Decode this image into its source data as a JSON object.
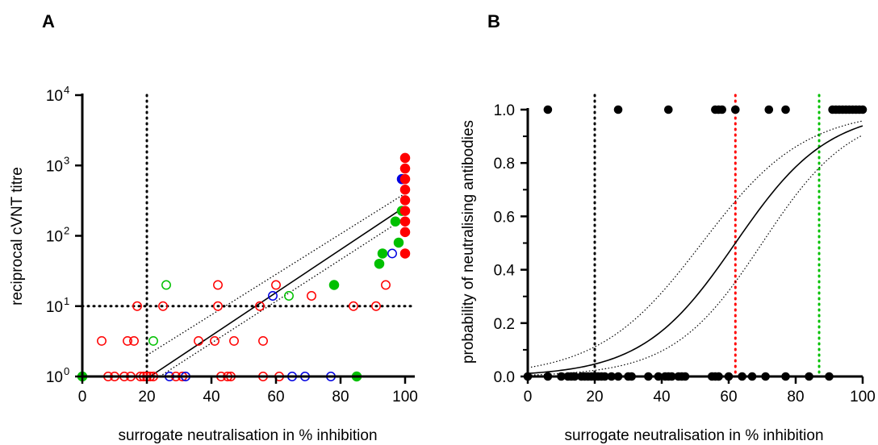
{
  "chart_data": [
    {
      "panel": "A",
      "type": "scatter",
      "xlabel": "surrogate neutralisation in % inhibition",
      "ylabel": "reciprocal cVNT titre",
      "xlim": [
        0,
        100
      ],
      "ylim": [
        1,
        10000
      ],
      "yscale": "log",
      "xticks": [
        "0",
        "20",
        "40",
        "60",
        "80",
        "100"
      ],
      "yticks": [
        {
          "base": "10",
          "exp": "0"
        },
        {
          "base": "10",
          "exp": "1"
        },
        {
          "base": "10",
          "exp": "2"
        },
        {
          "base": "10",
          "exp": "3"
        },
        {
          "base": "10",
          "exp": "4"
        }
      ],
      "reference_lines": {
        "x": 20,
        "y": 10
      },
      "colors": {
        "red": "#ff0000",
        "green": "#00c000",
        "blue": "#0000e0",
        "black": "#000000"
      },
      "fit": {
        "x": [
          21,
          100
        ],
        "y": [
          1,
          260
        ]
      },
      "ci_upper": {
        "x": [
          20,
          100
        ],
        "y": [
          2,
          400
        ]
      },
      "ci_lower": {
        "x": [
          24,
          100
        ],
        "y": [
          1,
          180
        ]
      },
      "points": [
        {
          "x": 0,
          "y": 1,
          "color": "green",
          "filled": true
        },
        {
          "x": 6,
          "y": 3.2,
          "color": "red",
          "filled": false
        },
        {
          "x": 8,
          "y": 1,
          "color": "red",
          "filled": false
        },
        {
          "x": 10,
          "y": 1,
          "color": "red",
          "filled": false
        },
        {
          "x": 13,
          "y": 1,
          "color": "red",
          "filled": false
        },
        {
          "x": 14,
          "y": 3.2,
          "color": "red",
          "filled": false
        },
        {
          "x": 16,
          "y": 3.2,
          "color": "red",
          "filled": false
        },
        {
          "x": 17,
          "y": 10,
          "color": "red",
          "filled": false
        },
        {
          "x": 15,
          "y": 1,
          "color": "red",
          "filled": false
        },
        {
          "x": 18,
          "y": 1,
          "color": "red",
          "filled": false
        },
        {
          "x": 19,
          "y": 1,
          "color": "red",
          "filled": false
        },
        {
          "x": 20,
          "y": 1,
          "color": "red",
          "filled": false
        },
        {
          "x": 21,
          "y": 1,
          "color": "red",
          "filled": false
        },
        {
          "x": 22,
          "y": 1,
          "color": "red",
          "filled": false
        },
        {
          "x": 22,
          "y": 3.2,
          "color": "green",
          "filled": false
        },
        {
          "x": 26,
          "y": 20,
          "color": "green",
          "filled": false
        },
        {
          "x": 25,
          "y": 10,
          "color": "red",
          "filled": false
        },
        {
          "x": 27,
          "y": 1,
          "color": "blue",
          "filled": false
        },
        {
          "x": 29,
          "y": 1,
          "color": "red",
          "filled": false
        },
        {
          "x": 31,
          "y": 1,
          "color": "red",
          "filled": false
        },
        {
          "x": 32,
          "y": 1,
          "color": "blue",
          "filled": false
        },
        {
          "x": 36,
          "y": 3.2,
          "color": "red",
          "filled": false
        },
        {
          "x": 41,
          "y": 3.2,
          "color": "red",
          "filled": false
        },
        {
          "x": 42,
          "y": 10,
          "color": "red",
          "filled": false
        },
        {
          "x": 42,
          "y": 20,
          "color": "red",
          "filled": false
        },
        {
          "x": 43,
          "y": 1,
          "color": "red",
          "filled": false
        },
        {
          "x": 45,
          "y": 1,
          "color": "red",
          "filled": false
        },
        {
          "x": 46,
          "y": 1,
          "color": "red",
          "filled": false
        },
        {
          "x": 47,
          "y": 3.2,
          "color": "red",
          "filled": false
        },
        {
          "x": 55,
          "y": 10,
          "color": "red",
          "filled": false
        },
        {
          "x": 56,
          "y": 3.2,
          "color": "red",
          "filled": false
        },
        {
          "x": 56,
          "y": 1,
          "color": "red",
          "filled": false
        },
        {
          "x": 59,
          "y": 14,
          "color": "blue",
          "filled": false
        },
        {
          "x": 60,
          "y": 20,
          "color": "red",
          "filled": false
        },
        {
          "x": 61,
          "y": 1,
          "color": "red",
          "filled": false
        },
        {
          "x": 64,
          "y": 14,
          "color": "green",
          "filled": false
        },
        {
          "x": 65,
          "y": 1,
          "color": "blue",
          "filled": false
        },
        {
          "x": 69,
          "y": 1,
          "color": "blue",
          "filled": false
        },
        {
          "x": 71,
          "y": 14,
          "color": "red",
          "filled": false
        },
        {
          "x": 77,
          "y": 1,
          "color": "blue",
          "filled": false
        },
        {
          "x": 78,
          "y": 20,
          "color": "green",
          "filled": true
        },
        {
          "x": 84,
          "y": 10,
          "color": "red",
          "filled": false
        },
        {
          "x": 85,
          "y": 1,
          "color": "green",
          "filled": true
        },
        {
          "x": 91,
          "y": 10,
          "color": "red",
          "filled": false
        },
        {
          "x": 92,
          "y": 40,
          "color": "green",
          "filled": true
        },
        {
          "x": 93,
          "y": 56,
          "color": "green",
          "filled": true
        },
        {
          "x": 94,
          "y": 20,
          "color": "red",
          "filled": false
        },
        {
          "x": 96,
          "y": 56,
          "color": "blue",
          "filled": false
        },
        {
          "x": 97,
          "y": 160,
          "color": "green",
          "filled": true
        },
        {
          "x": 98,
          "y": 80,
          "color": "green",
          "filled": true
        },
        {
          "x": 99,
          "y": 226,
          "color": "green",
          "filled": true
        },
        {
          "x": 99,
          "y": 640,
          "color": "blue",
          "filled": true
        },
        {
          "x": 100,
          "y": 56,
          "color": "red",
          "filled": true
        },
        {
          "x": 100,
          "y": 113,
          "color": "red",
          "filled": true
        },
        {
          "x": 100,
          "y": 160,
          "color": "red",
          "filled": true
        },
        {
          "x": 100,
          "y": 226,
          "color": "red",
          "filled": true
        },
        {
          "x": 100,
          "y": 320,
          "color": "red",
          "filled": true
        },
        {
          "x": 100,
          "y": 453,
          "color": "red",
          "filled": true
        },
        {
          "x": 100,
          "y": 640,
          "color": "red",
          "filled": true
        },
        {
          "x": 100,
          "y": 905,
          "color": "red",
          "filled": true
        },
        {
          "x": 100,
          "y": 1280,
          "color": "red",
          "filled": true
        }
      ]
    },
    {
      "panel": "B",
      "type": "scatter",
      "xlabel": "surrogate neutralisation in % inhibition",
      "ylabel": "probability of neutralising antibodies",
      "xlim": [
        0,
        100
      ],
      "ylim": [
        0,
        1.0
      ],
      "xticks": [
        "0",
        "20",
        "40",
        "60",
        "80",
        "100"
      ],
      "yticks": [
        "0.0",
        "0.2",
        "0.4",
        "0.6",
        "0.8",
        "1.0"
      ],
      "reference_lines": [
        {
          "x": 20,
          "color": "#000000"
        },
        {
          "x": 62,
          "color": "#ff0000"
        },
        {
          "x": 87,
          "color": "#00c000"
        }
      ],
      "logistic_fit": {
        "midpoint": 62,
        "slope": 0.072
      },
      "ci_upper": {
        "midpoint": 52,
        "slope": 0.065
      },
      "ci_lower": {
        "midpoint": 70,
        "slope": 0.075
      },
      "points_y1": [
        6,
        27,
        42,
        56,
        57,
        58,
        62,
        72,
        77,
        91,
        92,
        93,
        94,
        95,
        96,
        97,
        98,
        99,
        100
      ],
      "points_y0": [
        0,
        6,
        10,
        12,
        13,
        14,
        16,
        17,
        18,
        19,
        20,
        21,
        22,
        23,
        25,
        27,
        30,
        31,
        36,
        39,
        41,
        42,
        43,
        45,
        46,
        47,
        55,
        56,
        57,
        60,
        64,
        67,
        71,
        77,
        84,
        90
      ]
    }
  ]
}
